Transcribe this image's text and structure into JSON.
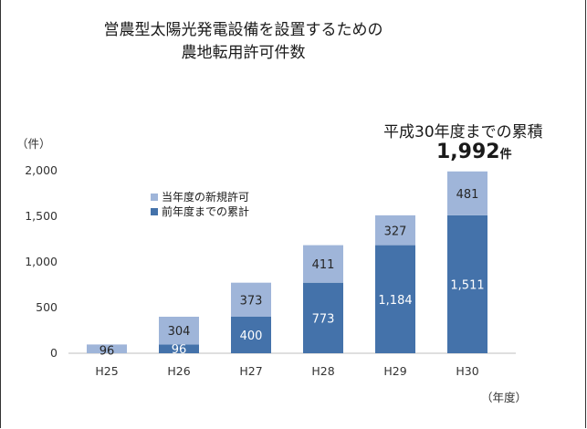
{
  "chart_data": {
    "type": "bar",
    "stacked": true,
    "title": "営農型太陽光発電設備を設置するための",
    "subtitle": "農地転用許可件数",
    "categories": [
      "H25",
      "H26",
      "H27",
      "H28",
      "H29",
      "H30"
    ],
    "series": [
      {
        "name": "前年度までの累計",
        "values": [
          0,
          96,
          400,
          773,
          1184,
          1511
        ],
        "labels": [
          "",
          "96",
          "400",
          "773",
          "1,184",
          "1,511"
        ],
        "color": "#4472aa"
      },
      {
        "name": "当年度の新規許可",
        "values": [
          96,
          304,
          373,
          411,
          327,
          481
        ],
        "labels": [
          "96",
          "304",
          "373",
          "411",
          "327",
          "481"
        ],
        "color": "#9fb5d9"
      }
    ],
    "ylim": [
      0,
      2000
    ],
    "yticks": [
      0,
      500,
      1000,
      1500,
      2000
    ],
    "ytick_labels": [
      "0",
      "500",
      "1,000",
      "1,500",
      "2,000"
    ],
    "ylabel": "（件）",
    "xlabel": "（年度）",
    "legend_position": "upper-left",
    "annotation": {
      "text": "平成30年度までの累積",
      "value": "1,992",
      "unit": "件"
    }
  }
}
